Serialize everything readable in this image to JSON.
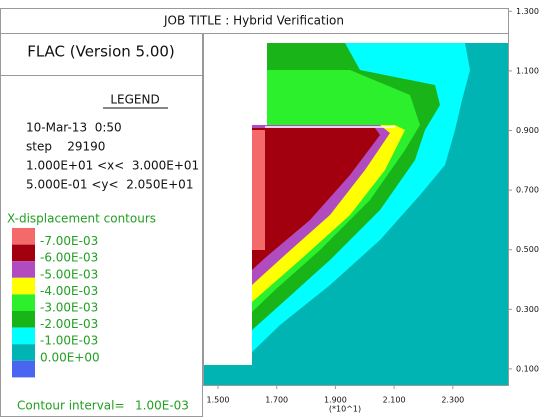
{
  "chart_data": {
    "type": "contour",
    "title": "JOB TITLE : Hybrid Verification",
    "program": "FLAC (Version 5.00)",
    "legend_title": "LEGEND",
    "date": "10-Mar-13  0:50",
    "step": "step    29190",
    "x_range": "1.000E+01 <x<  3.000E+01",
    "y_range": "5.000E-01 <y<  2.050E+01",
    "contour_title": "X-displacement contours",
    "levels": [
      {
        "value": -0.007,
        "label": "-7.00E-03"
      },
      {
        "value": -0.006,
        "label": "-6.00E-03"
      },
      {
        "value": -0.005,
        "label": "-5.00E-03"
      },
      {
        "value": -0.004,
        "label": "-4.00E-03"
      },
      {
        "value": -0.003,
        "label": "-3.00E-03"
      },
      {
        "value": -0.002,
        "label": "-2.00E-03"
      },
      {
        "value": -0.001,
        "label": "-1.00E-03"
      },
      {
        "value": 0,
        "label": "0.00E+00"
      }
    ],
    "band_colors": [
      "#f46a6a",
      "#a3000f",
      "#b04cc0",
      "#ffff00",
      "#2cf02c",
      "#18b418",
      "#00ffff",
      "#00b4b4",
      "#4a66f0"
    ],
    "interval_text": "Contour interval=",
    "interval": {
      "value": 0.001,
      "label": "1.00E-03"
    },
    "xlabel": "(*10^1)",
    "xlim": [
      1.449,
      2.488
    ],
    "xticks": [
      {
        "value": 1.5,
        "label": "1.500"
      },
      {
        "value": 1.7,
        "label": "1.700"
      },
      {
        "value": 1.9,
        "label": "1.900"
      },
      {
        "value": 2.1,
        "label": "2.100"
      },
      {
        "value": 2.3,
        "label": "2.300"
      }
    ],
    "ylim": [
      0.046,
      1.334
    ],
    "yticks": [
      {
        "value": 0.1,
        "label": "0.100"
      },
      {
        "value": 0.3,
        "label": "0.300"
      },
      {
        "value": 0.5,
        "label": "0.500"
      },
      {
        "value": 0.7,
        "label": "0.700"
      },
      {
        "value": 0.9,
        "label": "0.900"
      },
      {
        "value": 1.1,
        "label": "1.100"
      },
      {
        "value": 1.3,
        "label": "1.300"
      }
    ]
  }
}
